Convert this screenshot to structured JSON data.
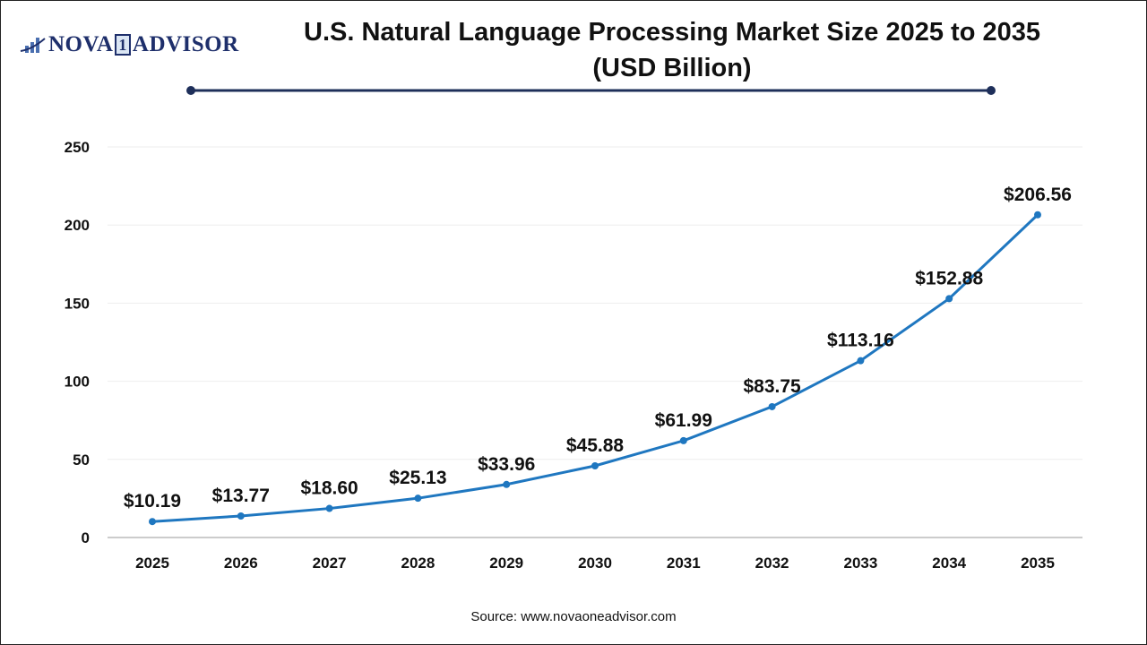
{
  "logo": {
    "text_left": "NOVA",
    "text_one": "1",
    "text_right": "ADVISOR"
  },
  "source": "Source: www.novaoneadvisor.com",
  "chart_data": {
    "type": "line",
    "title_line1": "U.S. Natural Language Processing Market Size 2025 to 2035",
    "title_line2": "(USD Billion)",
    "categories": [
      "2025",
      "2026",
      "2027",
      "2028",
      "2029",
      "2030",
      "2031",
      "2032",
      "2033",
      "2034",
      "2035"
    ],
    "values": [
      10.19,
      13.77,
      18.6,
      25.13,
      33.96,
      45.88,
      61.99,
      83.75,
      113.16,
      152.88,
      206.56
    ],
    "data_labels": [
      "$10.19",
      "$13.77",
      "$18.60",
      "$25.13",
      "$33.96",
      "$45.88",
      "$61.99",
      "$83.75",
      "$113.16",
      "$152.88",
      "$206.56"
    ],
    "yticks": [
      0,
      50,
      100,
      150,
      200,
      250
    ],
    "ylim": [
      0,
      250
    ],
    "grid": true,
    "line_color": "#1f77c0",
    "title_rule_color": "#1e2f5a"
  }
}
